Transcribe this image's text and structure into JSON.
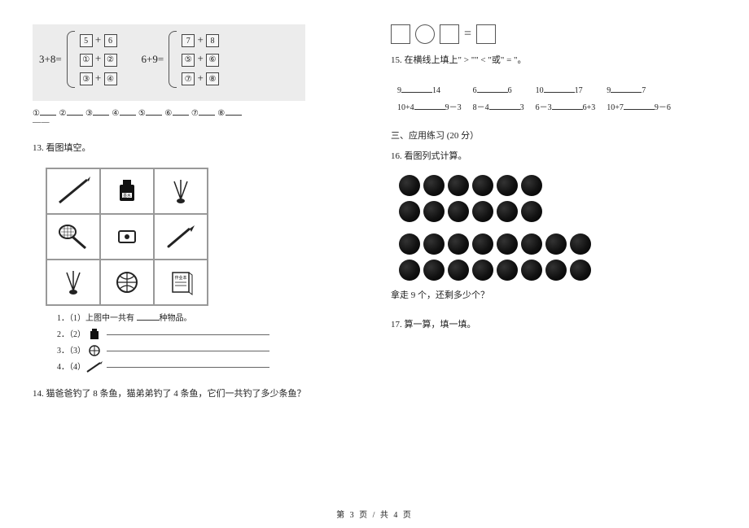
{
  "q12": {
    "left": {
      "lhs": "3+8=",
      "rows": [
        [
          "5",
          "+",
          "6"
        ],
        [
          "①",
          "+",
          "②"
        ],
        [
          "③",
          "+",
          "④"
        ]
      ]
    },
    "right": {
      "lhs": "6+9=",
      "rows": [
        [
          "7",
          "+",
          "8"
        ],
        [
          "⑤",
          "+",
          "⑥"
        ],
        [
          "⑦",
          "+",
          "⑧"
        ]
      ]
    },
    "labels": [
      "①",
      "②",
      "③",
      "④",
      "⑤",
      "⑥",
      "⑦",
      "⑧"
    ],
    "dash": "——"
  },
  "q13": {
    "num": "13.",
    "title": "看图填空。",
    "gridItems": [
      "pencil",
      "ink",
      "shuttlecock",
      "racket",
      "sharpener",
      "pen",
      "shuttlecock",
      "basketball",
      "notebook"
    ],
    "sub1a": "1．（1）上图中一共有",
    "sub1b": "种物品。",
    "sub2": "2．（2）",
    "sub3": "3．（3）",
    "sub4": "4．（4）"
  },
  "q14": {
    "num": "14.",
    "text": "猫爸爸钓了 8 条鱼，猫弟弟钓了 4 条鱼，它们一共钓了多少条鱼？",
    "eq": "="
  },
  "q15": {
    "num": "15.",
    "title": "在横线上填上\" > \"\" < \"或\" = \"。",
    "row1": [
      [
        "9",
        "14"
      ],
      [
        "6",
        "6"
      ],
      [
        "10",
        "17"
      ],
      [
        "9",
        "7"
      ]
    ],
    "row2": [
      [
        "10+4",
        "9－3"
      ],
      [
        "8－4",
        "3"
      ],
      [
        "6－3",
        "6+3"
      ],
      [
        "10+7",
        "9－6"
      ]
    ]
  },
  "section3": "三、应用练习  (20  分）",
  "q16": {
    "num": "16.",
    "title": "看图列式计算。",
    "rows": [
      6,
      6,
      8,
      8
    ],
    "dotColor": "#0d0d0d",
    "prompt": "拿走 9 个，还剩多少个？"
  },
  "q17": {
    "num": "17.",
    "title": "算一算，填一填。"
  },
  "footer": "第  3  页    /  共  4  页"
}
